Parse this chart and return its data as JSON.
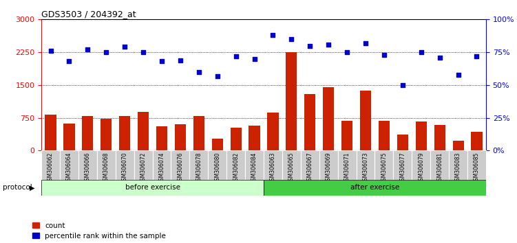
{
  "title": "GDS3503 / 204392_at",
  "samples": [
    "GSM306062",
    "GSM306064",
    "GSM306066",
    "GSM306068",
    "GSM306070",
    "GSM306072",
    "GSM306074",
    "GSM306076",
    "GSM306078",
    "GSM306080",
    "GSM306082",
    "GSM306084",
    "GSM306063",
    "GSM306065",
    "GSM306067",
    "GSM306069",
    "GSM306071",
    "GSM306073",
    "GSM306075",
    "GSM306077",
    "GSM306079",
    "GSM306081",
    "GSM306083",
    "GSM306085"
  ],
  "counts": [
    820,
    620,
    800,
    730,
    800,
    880,
    560,
    600,
    800,
    270,
    530,
    580,
    870,
    2250,
    1300,
    1450,
    680,
    1370,
    680,
    370,
    670,
    590,
    230,
    430
  ],
  "percentile": [
    76,
    68,
    77,
    75,
    79,
    75,
    68,
    69,
    60,
    57,
    72,
    70,
    88,
    85,
    80,
    81,
    75,
    82,
    73,
    50,
    75,
    71,
    58,
    72
  ],
  "before_exercise_count": 12,
  "after_exercise_count": 12,
  "ylim_left": [
    0,
    3000
  ],
  "ylim_right": [
    0,
    100
  ],
  "yticks_left": [
    0,
    750,
    1500,
    2250,
    3000
  ],
  "yticks_right": [
    0,
    25,
    50,
    75,
    100
  ],
  "bar_color": "#cc2200",
  "dot_color": "#0000cc",
  "before_bg": "#ccffcc",
  "after_bg": "#44cc44",
  "label_bg": "#cccccc",
  "protocol_label": "protocol",
  "before_label": "before exercise",
  "after_label": "after exercise",
  "legend_count": "count",
  "legend_percentile": "percentile rank within the sample"
}
